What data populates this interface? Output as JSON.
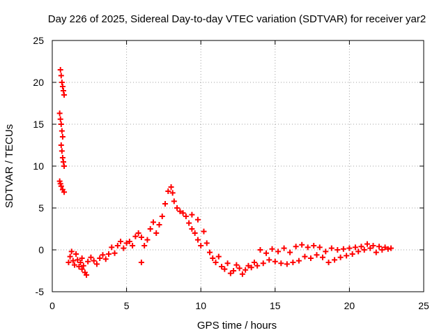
{
  "chart_data": {
    "type": "scatter",
    "title": "Day 226 of 2025, Sidereal Day-to-day VTEC variation (SDTVAR) for receiver yar2",
    "xlabel": "GPS time / hours",
    "ylabel": "SDTVAR / TECUs",
    "xlim": [
      0,
      25
    ],
    "ylim": [
      -5,
      25
    ],
    "xticks": [
      "0",
      "5",
      "10",
      "15",
      "20",
      "25"
    ],
    "yticks": [
      "-5",
      "0",
      "5",
      "10",
      "15",
      "20",
      "25"
    ],
    "grid": true,
    "marker": "+",
    "series_color": "#ff0000",
    "series": [
      {
        "name": "SDTVAR",
        "points": [
          [
            0.55,
            21.5
          ],
          [
            0.6,
            20.8
          ],
          [
            0.65,
            20.0
          ],
          [
            0.7,
            19.5
          ],
          [
            0.75,
            19.0
          ],
          [
            0.8,
            18.5
          ],
          [
            0.5,
            16.3
          ],
          [
            0.55,
            15.6
          ],
          [
            0.6,
            15.0
          ],
          [
            0.65,
            14.2
          ],
          [
            0.7,
            13.5
          ],
          [
            0.6,
            12.5
          ],
          [
            0.65,
            11.8
          ],
          [
            0.7,
            11.0
          ],
          [
            0.75,
            10.5
          ],
          [
            0.8,
            10.0
          ],
          [
            0.5,
            8.2
          ],
          [
            0.55,
            7.9
          ],
          [
            0.6,
            7.6
          ],
          [
            0.7,
            7.2
          ],
          [
            0.8,
            6.9
          ],
          [
            1.1,
            -1.5
          ],
          [
            1.2,
            -0.8
          ],
          [
            1.3,
            -0.2
          ],
          [
            1.4,
            -1.3
          ],
          [
            1.5,
            -1.8
          ],
          [
            1.6,
            -0.5
          ],
          [
            1.7,
            -1.2
          ],
          [
            1.8,
            -2.0
          ],
          [
            1.9,
            -1.5
          ],
          [
            2.0,
            -2.3
          ],
          [
            2.1,
            -1.9
          ],
          [
            2.2,
            -2.7
          ],
          [
            2.3,
            -3.0
          ],
          [
            2.0,
            -1.0
          ],
          [
            2.4,
            -1.4
          ],
          [
            2.6,
            -0.9
          ],
          [
            2.8,
            -1.3
          ],
          [
            3.0,
            -1.7
          ],
          [
            3.2,
            -1.0
          ],
          [
            3.4,
            -0.6
          ],
          [
            3.6,
            -1.1
          ],
          [
            3.8,
            -0.5
          ],
          [
            4.0,
            0.3
          ],
          [
            4.2,
            -0.4
          ],
          [
            4.4,
            0.5
          ],
          [
            4.6,
            1.0
          ],
          [
            4.8,
            0.2
          ],
          [
            5.0,
            0.8
          ],
          [
            5.2,
            1.0
          ],
          [
            5.4,
            0.5
          ],
          [
            5.6,
            1.6
          ],
          [
            5.8,
            2.0
          ],
          [
            6.0,
            1.5
          ],
          [
            6.2,
            0.5
          ],
          [
            6.0,
            -1.5
          ],
          [
            6.4,
            1.2
          ],
          [
            6.6,
            2.5
          ],
          [
            6.8,
            3.3
          ],
          [
            7.0,
            2.0
          ],
          [
            7.2,
            3.0
          ],
          [
            7.4,
            4.0
          ],
          [
            7.6,
            5.5
          ],
          [
            7.8,
            7.0
          ],
          [
            8.0,
            7.5
          ],
          [
            8.1,
            6.8
          ],
          [
            8.2,
            5.8
          ],
          [
            8.4,
            5.0
          ],
          [
            8.6,
            4.6
          ],
          [
            8.8,
            4.4
          ],
          [
            9.0,
            4.0
          ],
          [
            9.2,
            3.2
          ],
          [
            9.4,
            2.5
          ],
          [
            9.6,
            2.0
          ],
          [
            9.8,
            1.2
          ],
          [
            10.0,
            0.5
          ],
          [
            9.4,
            4.2
          ],
          [
            9.8,
            3.6
          ],
          [
            10.2,
            2.2
          ],
          [
            10.4,
            0.8
          ],
          [
            10.6,
            -0.3
          ],
          [
            10.8,
            -1.0
          ],
          [
            11.0,
            -1.5
          ],
          [
            11.2,
            -0.8
          ],
          [
            11.4,
            -2.0
          ],
          [
            11.6,
            -2.3
          ],
          [
            11.8,
            -1.6
          ],
          [
            12.0,
            -2.8
          ],
          [
            12.2,
            -2.5
          ],
          [
            12.4,
            -1.8
          ],
          [
            12.6,
            -2.2
          ],
          [
            12.8,
            -2.9
          ],
          [
            13.0,
            -2.4
          ],
          [
            13.2,
            -1.9
          ],
          [
            13.4,
            -2.1
          ],
          [
            13.6,
            -1.5
          ],
          [
            13.8,
            -1.9
          ],
          [
            14.0,
            0.0
          ],
          [
            14.2,
            -1.6
          ],
          [
            14.4,
            -0.4
          ],
          [
            14.6,
            -1.2
          ],
          [
            14.8,
            0.1
          ],
          [
            15.0,
            -1.4
          ],
          [
            15.2,
            -0.2
          ],
          [
            15.4,
            -1.6
          ],
          [
            15.6,
            0.2
          ],
          [
            15.8,
            -1.7
          ],
          [
            16.0,
            -0.3
          ],
          [
            16.2,
            -1.5
          ],
          [
            16.4,
            0.4
          ],
          [
            16.6,
            -1.3
          ],
          [
            16.8,
            0.6
          ],
          [
            17.0,
            -0.8
          ],
          [
            17.2,
            0.3
          ],
          [
            17.4,
            -1.0
          ],
          [
            17.6,
            0.5
          ],
          [
            17.8,
            -0.6
          ],
          [
            18.0,
            0.3
          ],
          [
            18.2,
            -0.9
          ],
          [
            18.4,
            -0.2
          ],
          [
            18.6,
            -1.5
          ],
          [
            18.8,
            0.2
          ],
          [
            19.0,
            -1.2
          ],
          [
            19.2,
            0.0
          ],
          [
            19.4,
            -0.9
          ],
          [
            19.6,
            0.1
          ],
          [
            19.8,
            -0.7
          ],
          [
            20.0,
            0.2
          ],
          [
            20.2,
            -0.5
          ],
          [
            20.4,
            0.3
          ],
          [
            20.6,
            -0.2
          ],
          [
            20.8,
            0.4
          ],
          [
            21.0,
            0.0
          ],
          [
            21.2,
            0.7
          ],
          [
            21.4,
            0.2
          ],
          [
            21.6,
            0.5
          ],
          [
            21.8,
            -0.3
          ],
          [
            22.0,
            0.4
          ],
          [
            22.2,
            0.0
          ],
          [
            22.4,
            0.3
          ],
          [
            22.6,
            0.1
          ],
          [
            22.8,
            0.2
          ]
        ]
      }
    ]
  }
}
